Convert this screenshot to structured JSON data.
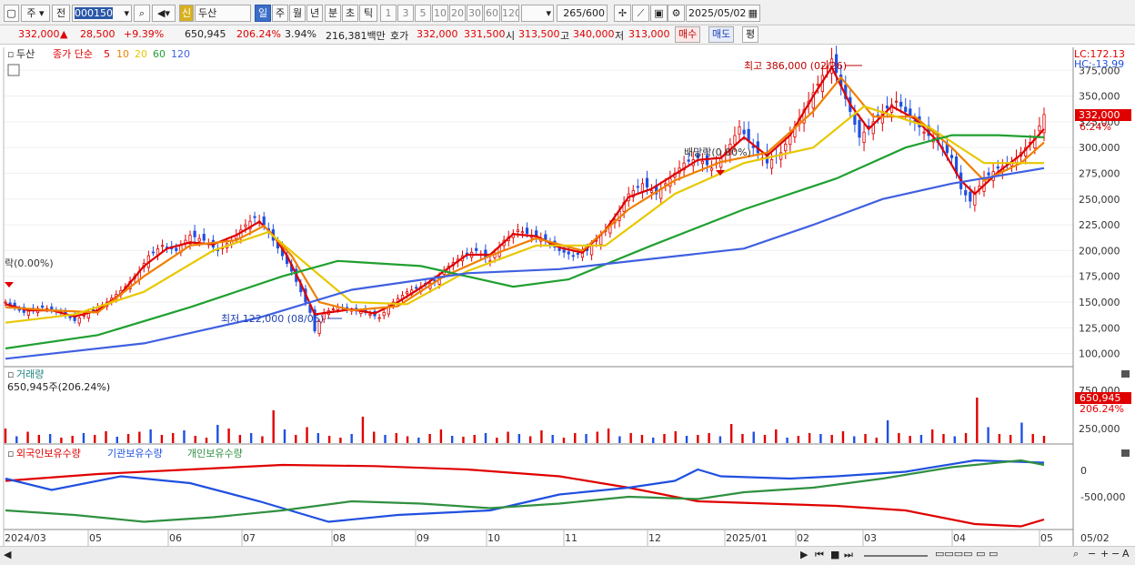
{
  "toolbar": {
    "period_select": "주",
    "prev_label": "전",
    "stock_code": "000150",
    "new_badge": "신",
    "stock_name": "두산",
    "period_tabs": [
      "일",
      "주",
      "월",
      "년",
      "분",
      "초",
      "틱"
    ],
    "active_period": "일",
    "interval_buttons": [
      "1",
      "3",
      "5",
      "10",
      "20",
      "30",
      "60",
      "120"
    ],
    "count_value": "265",
    "count_total": "/600",
    "date_value": "2025/05/02"
  },
  "quote": {
    "price": "332,000",
    "change_arrow": "▲",
    "change": "28,500",
    "change_pct": "+9.39%",
    "volume": "650,945",
    "volume_ratio": "206.24%",
    "turnover": "3.94%",
    "amount": "216,381백만",
    "ask_label": "호가",
    "ask_price": "332,000",
    "bid_price": "331,500",
    "open_label": "시",
    "open": "313,500",
    "high_label": "고",
    "high": "340,000",
    "low_label": "저",
    "low": "313,000",
    "buy_button": "매수",
    "sell_button": "매도",
    "eval_button": "평"
  },
  "price_pane": {
    "stock_name": "두산",
    "legend_prefix": "종가 단순",
    "ma_labels": [
      "5",
      "10",
      "20",
      "60",
      "120"
    ],
    "ma_colors": [
      "#e00000",
      "#f08000",
      "#e8c800",
      "#20a030",
      "#4060e0"
    ],
    "lc_label": "LC:172.13",
    "hc_label": "HC:-13.99",
    "high_annotation": "최고 386,000 (02/26)",
    "low_annotation": "최저 122,000 (08/05)",
    "dividend_annotation": "배당락(0.00%)",
    "dividend_left_annotation": "락(0.00%)",
    "last_price_label": "332,000",
    "last_pct_label": "6.24%"
  },
  "volume_pane": {
    "title": "거래량",
    "value_label": "650,945주(206.24%)",
    "last_label": "650,945",
    "pct_label": "206.24%",
    "y_ticks": [
      "750,000",
      "500,000",
      "250,000"
    ]
  },
  "holding_pane": {
    "legend": [
      "외국인보유수량",
      "기관보유수량",
      "개인보유수량"
    ],
    "colors": [
      "#e00000",
      "#2050e0",
      "#309040"
    ],
    "y_ticks": [
      "0",
      "-500,000"
    ]
  },
  "x_axis": {
    "labels": [
      "2024/03",
      "05",
      "06",
      "07",
      "08",
      "09",
      "10",
      "11",
      "12",
      "2025/01",
      "02",
      "03",
      "04",
      "05"
    ],
    "right_label": "05/02"
  },
  "chart_data": {
    "type": "candlestick",
    "title": "두산",
    "y_ticks": [
      100000,
      125000,
      150000,
      175000,
      200000,
      225000,
      250000,
      275000,
      300000,
      325000,
      350000,
      375000
    ],
    "ylim": [
      90000,
      392000
    ],
    "close_series": [
      [
        0,
        150000
      ],
      [
        8,
        140000
      ],
      [
        16,
        145000
      ],
      [
        24,
        140000
      ],
      [
        30,
        132000
      ],
      [
        36,
        140000
      ],
      [
        44,
        150000
      ],
      [
        52,
        165000
      ],
      [
        58,
        180000
      ],
      [
        62,
        195000
      ],
      [
        68,
        205000
      ],
      [
        74,
        200000
      ],
      [
        80,
        215000
      ],
      [
        86,
        210000
      ],
      [
        92,
        200000
      ],
      [
        98,
        210000
      ],
      [
        104,
        225000
      ],
      [
        108,
        232000
      ],
      [
        112,
        225000
      ],
      [
        116,
        210000
      ],
      [
        120,
        195000
      ],
      [
        124,
        180000
      ],
      [
        128,
        160000
      ],
      [
        132,
        140000
      ],
      [
        134,
        122000
      ],
      [
        138,
        140000
      ],
      [
        144,
        145000
      ],
      [
        150,
        142000
      ],
      [
        156,
        140000
      ],
      [
        162,
        135000
      ],
      [
        168,
        150000
      ],
      [
        174,
        160000
      ],
      [
        180,
        165000
      ],
      [
        186,
        170000
      ],
      [
        192,
        185000
      ],
      [
        198,
        195000
      ],
      [
        204,
        200000
      ],
      [
        210,
        190000
      ],
      [
        216,
        210000
      ],
      [
        222,
        220000
      ],
      [
        228,
        215000
      ],
      [
        234,
        210000
      ],
      [
        240,
        200000
      ],
      [
        246,
        195000
      ],
      [
        252,
        200000
      ],
      [
        258,
        215000
      ],
      [
        264,
        230000
      ],
      [
        270,
        255000
      ],
      [
        276,
        265000
      ],
      [
        282,
        255000
      ],
      [
        288,
        270000
      ],
      [
        294,
        285000
      ],
      [
        300,
        290000
      ],
      [
        306,
        280000
      ],
      [
        312,
        295000
      ],
      [
        318,
        320000
      ],
      [
        324,
        300000
      ],
      [
        330,
        285000
      ],
      [
        336,
        295000
      ],
      [
        342,
        320000
      ],
      [
        348,
        345000
      ],
      [
        354,
        370000
      ],
      [
        358,
        386000
      ],
      [
        362,
        360000
      ],
      [
        366,
        335000
      ],
      [
        370,
        310000
      ],
      [
        374,
        320000
      ],
      [
        380,
        335000
      ],
      [
        386,
        345000
      ],
      [
        392,
        330000
      ],
      [
        398,
        315000
      ],
      [
        404,
        305000
      ],
      [
        410,
        290000
      ],
      [
        414,
        260000
      ],
      [
        418,
        248000
      ],
      [
        424,
        270000
      ],
      [
        430,
        280000
      ],
      [
        436,
        285000
      ],
      [
        442,
        300000
      ],
      [
        446,
        310000
      ],
      [
        450,
        332000
      ]
    ],
    "ma_series": [
      {
        "name": "5",
        "values": [
          [
            0,
            148000
          ],
          [
            10,
            142000
          ],
          [
            20,
            142000
          ],
          [
            30,
            136000
          ],
          [
            40,
            142000
          ],
          [
            50,
            158000
          ],
          [
            60,
            185000
          ],
          [
            70,
            202000
          ],
          [
            80,
            208000
          ],
          [
            90,
            206000
          ],
          [
            100,
            215000
          ],
          [
            110,
            228000
          ],
          [
            116,
            215000
          ],
          [
            122,
            195000
          ],
          [
            128,
            168000
          ],
          [
            134,
            138000
          ],
          [
            140,
            140000
          ],
          [
            150,
            143000
          ],
          [
            160,
            139000
          ],
          [
            170,
            150000
          ],
          [
            180,
            164000
          ],
          [
            190,
            180000
          ],
          [
            200,
            196000
          ],
          [
            210,
            196000
          ],
          [
            220,
            216000
          ],
          [
            230,
            214000
          ],
          [
            240,
            203000
          ],
          [
            250,
            198000
          ],
          [
            260,
            220000
          ],
          [
            270,
            252000
          ],
          [
            280,
            260000
          ],
          [
            290,
            274000
          ],
          [
            300,
            288000
          ],
          [
            310,
            290000
          ],
          [
            320,
            310000
          ],
          [
            330,
            292000
          ],
          [
            340,
            312000
          ],
          [
            350,
            350000
          ],
          [
            358,
            378000
          ],
          [
            366,
            342000
          ],
          [
            374,
            318000
          ],
          [
            384,
            340000
          ],
          [
            394,
            328000
          ],
          [
            404,
            306000
          ],
          [
            414,
            268000
          ],
          [
            420,
            255000
          ],
          [
            430,
            276000
          ],
          [
            440,
            293000
          ],
          [
            450,
            318000
          ]
        ]
      },
      {
        "name": "10",
        "values": [
          [
            0,
            145000
          ],
          [
            20,
            142000
          ],
          [
            40,
            140000
          ],
          [
            60,
            175000
          ],
          [
            80,
            205000
          ],
          [
            100,
            210000
          ],
          [
            112,
            224000
          ],
          [
            124,
            195000
          ],
          [
            136,
            150000
          ],
          [
            150,
            142000
          ],
          [
            170,
            146000
          ],
          [
            190,
            175000
          ],
          [
            210,
            195000
          ],
          [
            230,
            212000
          ],
          [
            250,
            200000
          ],
          [
            270,
            240000
          ],
          [
            290,
            268000
          ],
          [
            310,
            286000
          ],
          [
            330,
            295000
          ],
          [
            350,
            335000
          ],
          [
            362,
            368000
          ],
          [
            376,
            330000
          ],
          [
            394,
            330000
          ],
          [
            410,
            300000
          ],
          [
            424,
            268000
          ],
          [
            440,
            285000
          ],
          [
            450,
            305000
          ]
        ]
      },
      {
        "name": "20",
        "values": [
          [
            0,
            130000
          ],
          [
            30,
            138000
          ],
          [
            60,
            160000
          ],
          [
            90,
            200000
          ],
          [
            114,
            218000
          ],
          [
            134,
            180000
          ],
          [
            150,
            150000
          ],
          [
            174,
            148000
          ],
          [
            200,
            180000
          ],
          [
            230,
            205000
          ],
          [
            260,
            205000
          ],
          [
            290,
            255000
          ],
          [
            320,
            285000
          ],
          [
            350,
            300000
          ],
          [
            372,
            340000
          ],
          [
            400,
            320000
          ],
          [
            424,
            285000
          ],
          [
            450,
            285000
          ]
        ]
      },
      {
        "name": "60",
        "values": [
          [
            0,
            105000
          ],
          [
            40,
            118000
          ],
          [
            80,
            145000
          ],
          [
            120,
            175000
          ],
          [
            144,
            190000
          ],
          [
            180,
            185000
          ],
          [
            220,
            165000
          ],
          [
            244,
            172000
          ],
          [
            280,
            205000
          ],
          [
            320,
            240000
          ],
          [
            360,
            270000
          ],
          [
            390,
            300000
          ],
          [
            410,
            312000
          ],
          [
            430,
            312000
          ],
          [
            450,
            310000
          ]
        ]
      },
      {
        "name": "120",
        "values": [
          [
            0,
            95000
          ],
          [
            60,
            110000
          ],
          [
            110,
            135000
          ],
          [
            150,
            162000
          ],
          [
            200,
            178000
          ],
          [
            240,
            182000
          ],
          [
            280,
            192000
          ],
          [
            320,
            202000
          ],
          [
            350,
            225000
          ],
          [
            380,
            250000
          ],
          [
            410,
            265000
          ],
          [
            450,
            280000
          ]
        ]
      }
    ],
    "volume_values": [
      0.32,
      0.15,
      0.25,
      0.18,
      0.2,
      0.12,
      0.16,
      0.22,
      0.18,
      0.26,
      0.14,
      0.2,
      0.25,
      0.3,
      0.18,
      0.22,
      0.28,
      0.16,
      0.12,
      0.4,
      0.32,
      0.18,
      0.22,
      0.15,
      0.72,
      0.3,
      0.18,
      0.35,
      0.22,
      0.16,
      0.12,
      0.2,
      0.58,
      0.25,
      0.18,
      0.22,
      0.15,
      0.12,
      0.2,
      0.3,
      0.16,
      0.14,
      0.18,
      0.22,
      0.12,
      0.25,
      0.2,
      0.15,
      0.28,
      0.18,
      0.12,
      0.22,
      0.2,
      0.25,
      0.32,
      0.15,
      0.22,
      0.18,
      0.12,
      0.2,
      0.26,
      0.16,
      0.18,
      0.22,
      0.15,
      0.42,
      0.2,
      0.25,
      0.18,
      0.3,
      0.12,
      0.16,
      0.22,
      0.2,
      0.18,
      0.26,
      0.15,
      0.2,
      0.12,
      0.5,
      0.22,
      0.16,
      0.18,
      0.3,
      0.2,
      0.15,
      0.22,
      1.0,
      0.35,
      0.2,
      0.18,
      0.45,
      0.2,
      0.16
    ],
    "holding_series": [
      {
        "name": "외국인보유수량",
        "values": [
          [
            0,
            -50
          ],
          [
            40,
            -20
          ],
          [
            80,
            0
          ],
          [
            120,
            20
          ],
          [
            160,
            15
          ],
          [
            200,
            0
          ],
          [
            240,
            -30
          ],
          [
            270,
            -80
          ],
          [
            300,
            -140
          ],
          [
            330,
            -150
          ],
          [
            360,
            -160
          ],
          [
            390,
            -180
          ],
          [
            420,
            -240
          ],
          [
            440,
            -250
          ],
          [
            450,
            -220
          ]
        ]
      },
      {
        "name": "기관보유수량",
        "values": [
          [
            0,
            -40
          ],
          [
            20,
            -90
          ],
          [
            50,
            -30
          ],
          [
            80,
            -60
          ],
          [
            110,
            -140
          ],
          [
            140,
            -230
          ],
          [
            170,
            -200
          ],
          [
            210,
            -180
          ],
          [
            240,
            -110
          ],
          [
            270,
            -80
          ],
          [
            290,
            -50
          ],
          [
            300,
            0
          ],
          [
            310,
            -30
          ],
          [
            340,
            -40
          ],
          [
            360,
            -30
          ],
          [
            390,
            -10
          ],
          [
            420,
            40
          ],
          [
            450,
            30
          ]
        ]
      },
      {
        "name": "개인보유수량",
        "values": [
          [
            0,
            -180
          ],
          [
            30,
            -200
          ],
          [
            60,
            -230
          ],
          [
            90,
            -210
          ],
          [
            120,
            -180
          ],
          [
            150,
            -140
          ],
          [
            180,
            -150
          ],
          [
            210,
            -170
          ],
          [
            240,
            -150
          ],
          [
            270,
            -120
          ],
          [
            300,
            -130
          ],
          [
            320,
            -100
          ],
          [
            350,
            -80
          ],
          [
            380,
            -40
          ],
          [
            410,
            10
          ],
          [
            440,
            40
          ],
          [
            450,
            20
          ]
        ]
      }
    ]
  }
}
